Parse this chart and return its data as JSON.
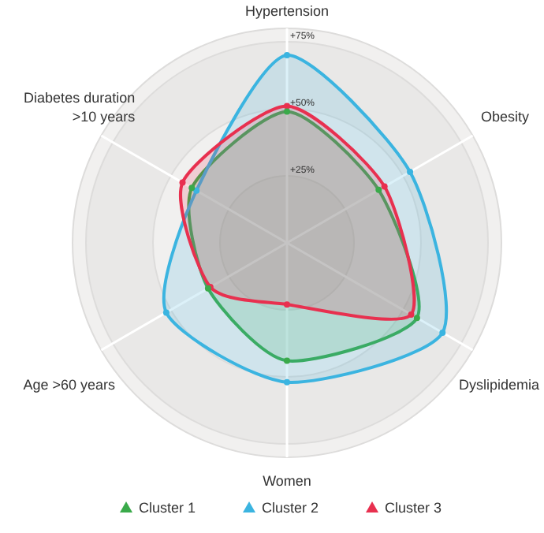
{
  "chart_data": {
    "type": "radar",
    "categories": [
      "Hypertension",
      "Obesity",
      "Dyslipidemia",
      "Women",
      "Age >60 years",
      "Diabetes duration\n>10 years"
    ],
    "series": [
      {
        "name": "Cluster 1",
        "color": "#3aaa4a",
        "values": [
          49,
          39.5,
          56,
          44,
          34,
          41
        ]
      },
      {
        "name": "Cluster 2",
        "color": "#3bb4e0",
        "values": [
          70,
          53,
          67,
          52,
          52,
          39
        ]
      },
      {
        "name": "Cluster 3",
        "color": "#e8304f",
        "values": [
          51,
          42,
          53.5,
          23,
          33,
          45
        ]
      }
    ],
    "ylim": [
      0,
      80
    ],
    "yticks": [
      {
        "value": 25,
        "label": "+25%"
      },
      {
        "value": 50,
        "label": "+50%"
      },
      {
        "value": 75,
        "label": "+75%"
      }
    ],
    "grid": true,
    "legend": "bottom",
    "marker": "circle"
  }
}
